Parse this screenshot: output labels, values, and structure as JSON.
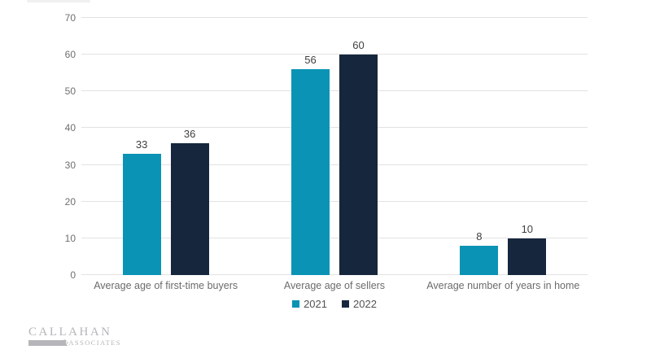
{
  "chart_data": {
    "type": "bar",
    "categories": [
      "Average age of first-time buyers",
      "Average age of sellers",
      "Average number of years in home"
    ],
    "series": [
      {
        "name": "2021",
        "color": "#0a93b4",
        "values": [
          33,
          56,
          8
        ]
      },
      {
        "name": "2022",
        "color": "#16263d",
        "values": [
          36,
          60,
          10
        ]
      }
    ],
    "title": "",
    "xlabel": "",
    "ylabel": "",
    "ylim": [
      0,
      70
    ],
    "yticks": [
      0,
      10,
      20,
      30,
      40,
      50,
      60,
      70
    ],
    "grid": true,
    "legend_position": "bottom",
    "value_labels": true
  },
  "colors": {
    "bar_2021": "#0a93b4",
    "bar_2022": "#16263d",
    "gridline": "#e2e2e2",
    "tick_label": "#6f6f6f",
    "value_label": "#3f3f3f",
    "category_label": "#6b6b6b",
    "legend_label": "#525252",
    "logo": "#b6b6ba",
    "background": "#ffffff"
  },
  "logo": {
    "line1": "CALLAHAN",
    "amp": "&",
    "line2": "ASSOCIATES"
  }
}
